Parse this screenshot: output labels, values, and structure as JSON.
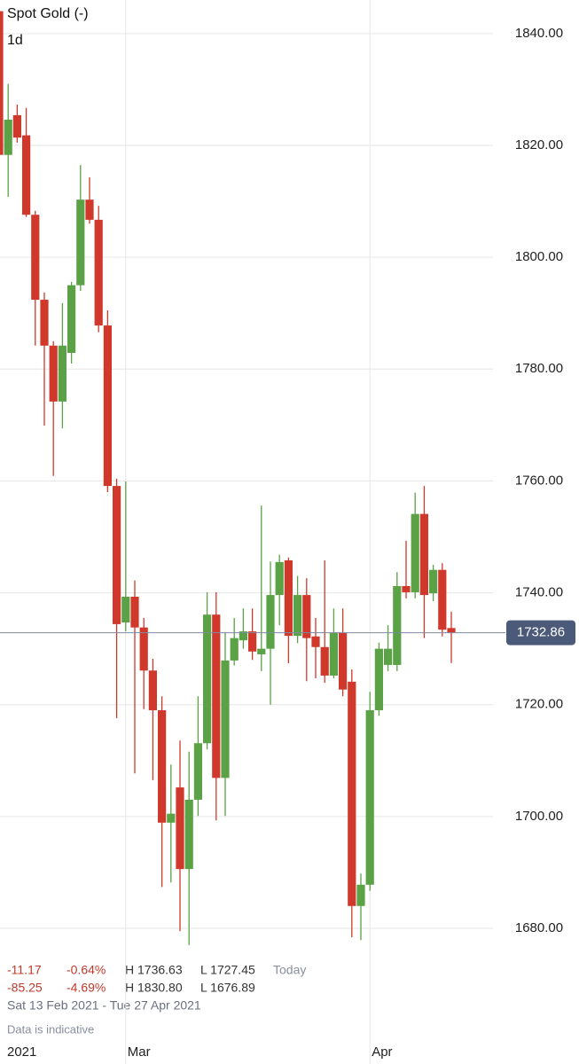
{
  "chart_data": {
    "type": "candlestick",
    "title": "Spot Gold (-)",
    "interval": "1d",
    "up_color": "#5aa245",
    "down_color": "#d0382b",
    "open": [
      1844,
      1818.3,
      1825.4,
      1821.8,
      1807.6,
      1792.4,
      1784.2,
      1774.2,
      1782.9,
      1795.0,
      1810.3,
      1806.7,
      1787.8,
      1759.1,
      1734.7,
      1739.3,
      1733.8,
      1726.1,
      1719.0,
      1698.9,
      1705.2,
      1690.6,
      1703.0,
      1713.1,
      1736.1,
      1706.9,
      1727.9,
      1731.5,
      1733.1,
      1729.0,
      1730.0,
      1739.6,
      1745.8,
      1732.3,
      1739.6,
      1732.2,
      1730.3,
      1725.2,
      1732.8,
      1724.1,
      1684.0,
      1687.8,
      1719.0,
      1727.1,
      1727.1,
      1741.2,
      1740.1,
      1754.1,
      1739.9,
      1744.1,
      1733.7
    ],
    "high": [
      1845,
      1831.0,
      1827.3,
      1826.7,
      1808.3,
      1793.7,
      1785.0,
      1791.8,
      1795.6,
      1816.5,
      1814.3,
      1809.2,
      1790.5,
      1760.4,
      1759.9,
      1742.2,
      1735.5,
      1728.2,
      1721.5,
      1709.3,
      1713.6,
      1711.6,
      1721.5,
      1740.1,
      1740.1,
      1733.0,
      1735.5,
      1737.2,
      1737.2,
      1755.6,
      1745.6,
      1746.8,
      1746.3,
      1743.0,
      1742.6,
      1735.5,
      1745.8,
      1737.2,
      1737.2,
      1726.3,
      1689.8,
      1722.3,
      1731.1,
      1734.2,
      1743.7,
      1749.3,
      1757.9,
      1759.1,
      1745.0,
      1745.3,
      1736.63
    ],
    "low": [
      1817,
      1810.8,
      1820.5,
      1807.2,
      1784.2,
      1769.9,
      1760.9,
      1769.4,
      1781.0,
      1794.0,
      1806.0,
      1786.6,
      1758.0,
      1717.6,
      1733.1,
      1707.7,
      1719.2,
      1706.5,
      1687.4,
      1688.2,
      1679.5,
      1677.0,
      1700.1,
      1712.0,
      1699.3,
      1700.1,
      1727.0,
      1730.0,
      1728.0,
      1726.0,
      1720.0,
      1734.2,
      1727.4,
      1731.0,
      1724.2,
      1724.7,
      1723.9,
      1724.7,
      1721.5,
      1678.4,
      1677.9,
      1686.7,
      1718.0,
      1726.0,
      1726.0,
      1739.0,
      1739.0,
      1731.9,
      1738.5,
      1732.2,
      1727.45
    ],
    "close": [
      1818.3,
      1824.6,
      1821.4,
      1807.6,
      1792.4,
      1784.2,
      1774.2,
      1784.2,
      1795.0,
      1810.3,
      1806.7,
      1787.8,
      1759.1,
      1734.4,
      1739.3,
      1733.8,
      1726.1,
      1719.0,
      1698.9,
      1700.5,
      1690.6,
      1703.0,
      1713.1,
      1736.1,
      1706.9,
      1727.9,
      1731.9,
      1733.1,
      1729.5,
      1730.0,
      1739.6,
      1745.5,
      1732.3,
      1739.6,
      1731.9,
      1730.3,
      1725.2,
      1732.8,
      1722.7,
      1684.0,
      1687.8,
      1719.0,
      1730.0,
      1730.0,
      1741.2,
      1740.1,
      1754.1,
      1739.6,
      1744.1,
      1733.4,
      1732.86
    ],
    "ylim": [
      1660.5,
      1846.0
    ],
    "yticks": [
      {
        "value": 1680,
        "label": "1680.00"
      },
      {
        "value": 1700,
        "label": "1700.00"
      },
      {
        "value": 1720,
        "label": "1720.00"
      },
      {
        "value": 1740,
        "label": "1740.00"
      },
      {
        "value": 1760,
        "label": "1760.00"
      },
      {
        "value": 1780,
        "label": "1780.00"
      },
      {
        "value": 1800,
        "label": "1800.00"
      },
      {
        "value": 1820,
        "label": "1820.00"
      },
      {
        "value": 1840,
        "label": "1840.00"
      }
    ],
    "xticks": [
      {
        "value": 14,
        "label": "Mar"
      },
      {
        "value": 41,
        "label": "Apr"
      }
    ],
    "year_label": "2021",
    "grid": true,
    "stats": [
      {
        "change": "-11.17",
        "change_pct": "-0.64%",
        "high": "H 1736.63",
        "low": "L 1727.45",
        "period": "Today"
      },
      {
        "change": "-85.25",
        "change_pct": "-4.69%",
        "high": "H 1830.80",
        "low": "L 1676.89"
      }
    ],
    "date_range": "Sat 13 Feb 2021 - Tue 27 Apr 2021",
    "note": "Data is indicative"
  }
}
